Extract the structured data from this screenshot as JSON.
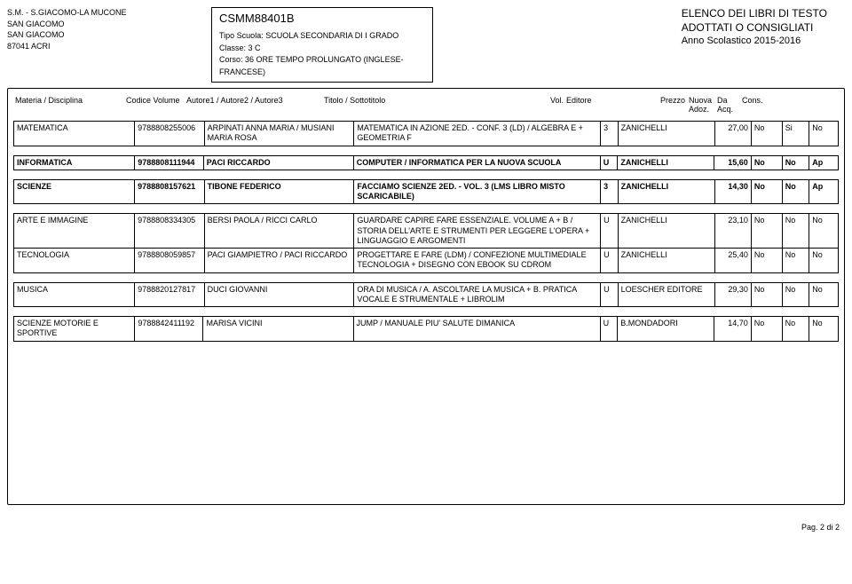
{
  "school": {
    "line1": "S.M. - S.GIACOMO-LA MUCONE",
    "line2": "SAN GIACOMO",
    "line3": "SAN GIACOMO",
    "line4": "87041   ACRI"
  },
  "codebox": {
    "code": "CSMM88401B",
    "tipo_label": "Tipo Scuola:",
    "tipo_value": "SCUOLA SECONDARIA DI I GRADO",
    "classe_label": "Classe:",
    "classe_value": "3 C",
    "corso_label": "Corso:",
    "corso_value": "36 ORE TEMPO PROLUNGATO (INGLESE-FRANCESE)"
  },
  "rightblock": {
    "l1": "ELENCO DEI LIBRI DI TESTO",
    "l2": "ADOTTATI O CONSIGLIATI",
    "l3": "Anno Scolastico 2015-2016"
  },
  "headers": {
    "materia": "Materia / Disciplina",
    "codice": "Codice Volume",
    "autore": "Autore1 / Autore2 / Autore3",
    "titolo": "Titolo / Sottotitolo",
    "vol": "Vol.",
    "editore": "Editore",
    "prezzo": "Prezzo",
    "nuova": "Nuova Adoz.",
    "da": "Da Acq.",
    "cons": "Cons."
  },
  "rows": [
    {
      "bold": false,
      "materia": "MATEMATICA",
      "codice": "9788808255006",
      "autore": "ARPINATI ANNA MARIA / MUSIANI MARIA ROSA",
      "titolo": "MATEMATICA IN AZIONE 2ED. - CONF. 3 (LD) / ALGEBRA E + GEOMETRIA F",
      "vol": "3",
      "editore": "ZANICHELLI",
      "prezzo": "27,00",
      "nuova": "No",
      "da": "Si",
      "cons": "No"
    },
    {
      "bold": true,
      "materia": "INFORMATICA",
      "codice": "9788808111944",
      "autore": "PACI RICCARDO",
      "titolo": "COMPUTER / INFORMATICA PER LA NUOVA SCUOLA",
      "vol": "U",
      "editore": "ZANICHELLI",
      "prezzo": "15,60",
      "nuova": "No",
      "da": "No",
      "cons": "Ap"
    },
    {
      "bold": true,
      "materia": "SCIENZE",
      "codice": "9788808157621",
      "autore": "TIBONE FEDERICO",
      "titolo": "FACCIAMO SCIENZE 2ED. - VOL. 3 (LMS LIBRO MISTO SCARICABILE)",
      "vol": "3",
      "editore": "ZANICHELLI",
      "prezzo": "14,30",
      "nuova": "No",
      "da": "No",
      "cons": "Ap"
    },
    {
      "bold": false,
      "materia": "ARTE E IMMAGINE",
      "codice": "9788808334305",
      "autore": "BERSI PAOLA / RICCI CARLO",
      "titolo": "GUARDARE CAPIRE FARE ESSENZIALE. VOLUME A + B / STORIA DELL'ARTE E STRUMENTI PER LEGGERE L'OPERA + LINGUAGGIO E ARGOMENTI",
      "vol": "U",
      "editore": "ZANICHELLI",
      "prezzo": "23,10",
      "nuova": "No",
      "da": "No",
      "cons": "No"
    },
    {
      "bold": false,
      "materia": "TECNOLOGIA",
      "codice": "9788808059857",
      "autore": "PACI GIAMPIETRO / PACI RICCARDO",
      "titolo": "PROGETTARE E FARE (LDM) / CONFEZIONE MULTIMEDIALE TECNOLOGIA + DISEGNO CON EBOOK SU CDROM",
      "vol": "U",
      "editore": "ZANICHELLI",
      "prezzo": "25,40",
      "nuova": "No",
      "da": "No",
      "cons": "No"
    },
    {
      "bold": false,
      "materia": "MUSICA",
      "codice": "9788820127817",
      "autore": "DUCI GIOVANNI",
      "titolo": "ORA DI MUSICA / A. ASCOLTARE LA MUSICA + B. PRATICA VOCALE E STRUMENTALE + LIBROLIM",
      "vol": "U",
      "editore": "LOESCHER EDITORE",
      "prezzo": "29,30",
      "nuova": "No",
      "da": "No",
      "cons": "No"
    },
    {
      "bold": false,
      "materia": "SCIENZE MOTORIE E SPORTIVE",
      "codice": "9788842411192",
      "autore": "MARISA VICINI",
      "titolo": "JUMP / MANUALE PIU' SALUTE DIMANICA",
      "vol": "U",
      "editore": "B.MONDADORI",
      "prezzo": "14,70",
      "nuova": "No",
      "da": "No",
      "cons": "No"
    }
  ],
  "row_groups": [
    [
      0
    ],
    [
      1
    ],
    [
      2
    ],
    [
      3,
      4
    ],
    [
      5
    ],
    [
      6
    ]
  ],
  "footer": "Pag. 2 di 2"
}
